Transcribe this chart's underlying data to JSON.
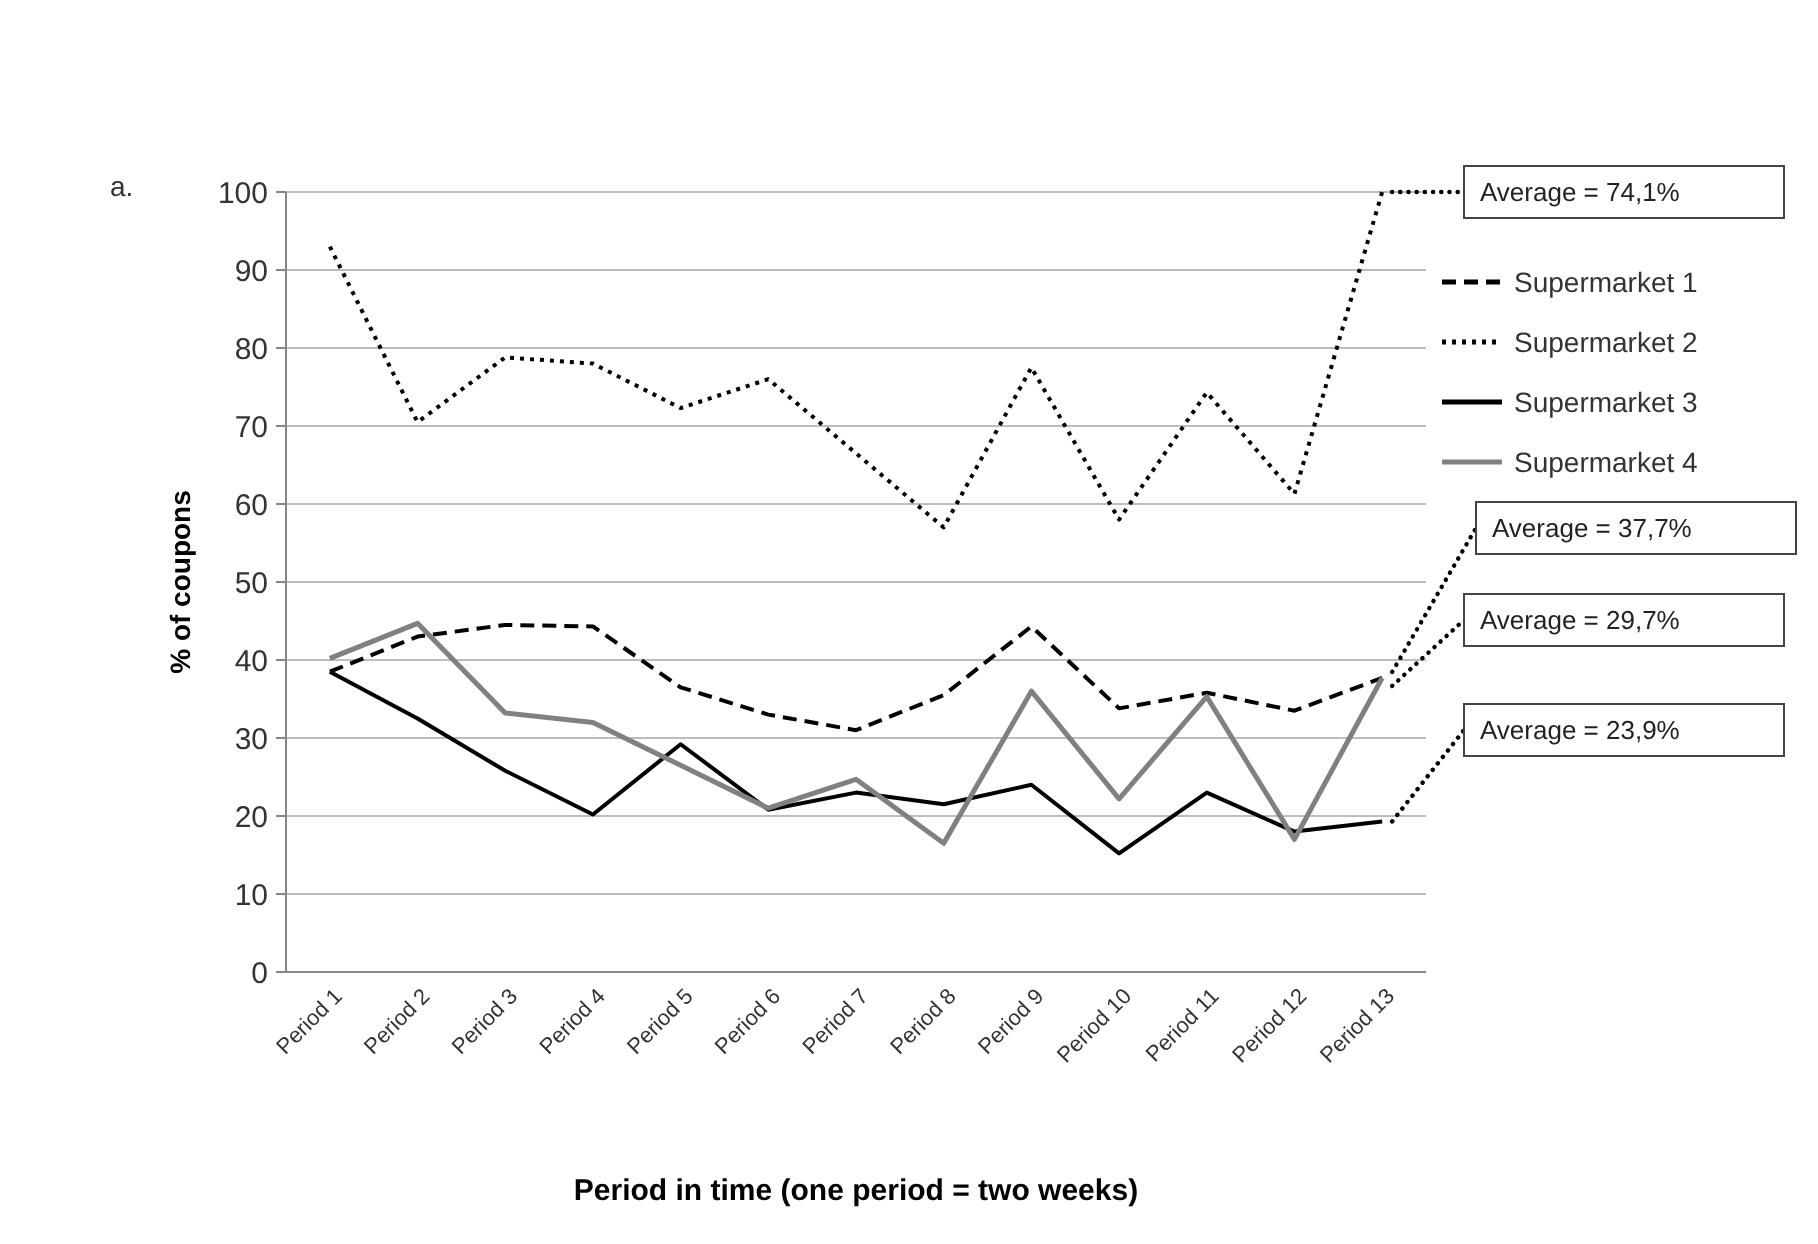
{
  "chart_data": {
    "type": "line",
    "xlabel": "Period in time (one period = two weeks)",
    "ylabel": "% of coupons",
    "categories": [
      "Period 1",
      "Period 2",
      "Period 3",
      "Period 4",
      "Period 5",
      "Period 6",
      "Period 7",
      "Period 8",
      "Period 9",
      "Period 10",
      "Period 11",
      "Period 12",
      "Period 13"
    ],
    "series": [
      {
        "name": "Supermarket 1",
        "color": "#000000",
        "line_style": "dashed",
        "values": [
          38.5,
          43,
          44.5,
          44.3,
          36.5,
          33,
          31,
          35.5,
          44.3,
          33.8,
          35.8,
          33.5,
          37.7
        ]
      },
      {
        "name": "Supermarket 2",
        "color": "#000000",
        "line_style": "dotted",
        "values": [
          93,
          70.5,
          78.8,
          78,
          72.3,
          76,
          66.5,
          57,
          77.5,
          58,
          74.3,
          61.3,
          100
        ]
      },
      {
        "name": "Supermarket 3",
        "color": "#000000",
        "line_style": "solid",
        "values": [
          38.5,
          32.5,
          25.8,
          20.2,
          29.2,
          20.8,
          23,
          21.5,
          24,
          15.2,
          23,
          18,
          19.3
        ]
      },
      {
        "name": "Supermarket 4",
        "color": "#808080",
        "line_style": "solid",
        "values": [
          40.2,
          44.7,
          33.2,
          32,
          26.5,
          21,
          24.7,
          16.5,
          36,
          22.2,
          35.3,
          17,
          37.7
        ]
      }
    ],
    "ylim": [
      0,
      100
    ],
    "yticks": [
      0,
      10,
      20,
      30,
      40,
      50,
      60,
      70,
      80,
      90,
      100
    ],
    "grid": "y",
    "legend": "right",
    "marker": "none",
    "annotations": [
      "a.",
      "Average = 74,1%",
      {
        "text": "Average = 37,7%",
        "x": "Period 13",
        "y": 37.7
      },
      {
        "text": "Average = 29,7%",
        "x": "Period 13",
        "y": 37.7
      },
      {
        "text": "Average = 23,9%",
        "x": "Period 13",
        "y": 19.3
      }
    ]
  }
}
